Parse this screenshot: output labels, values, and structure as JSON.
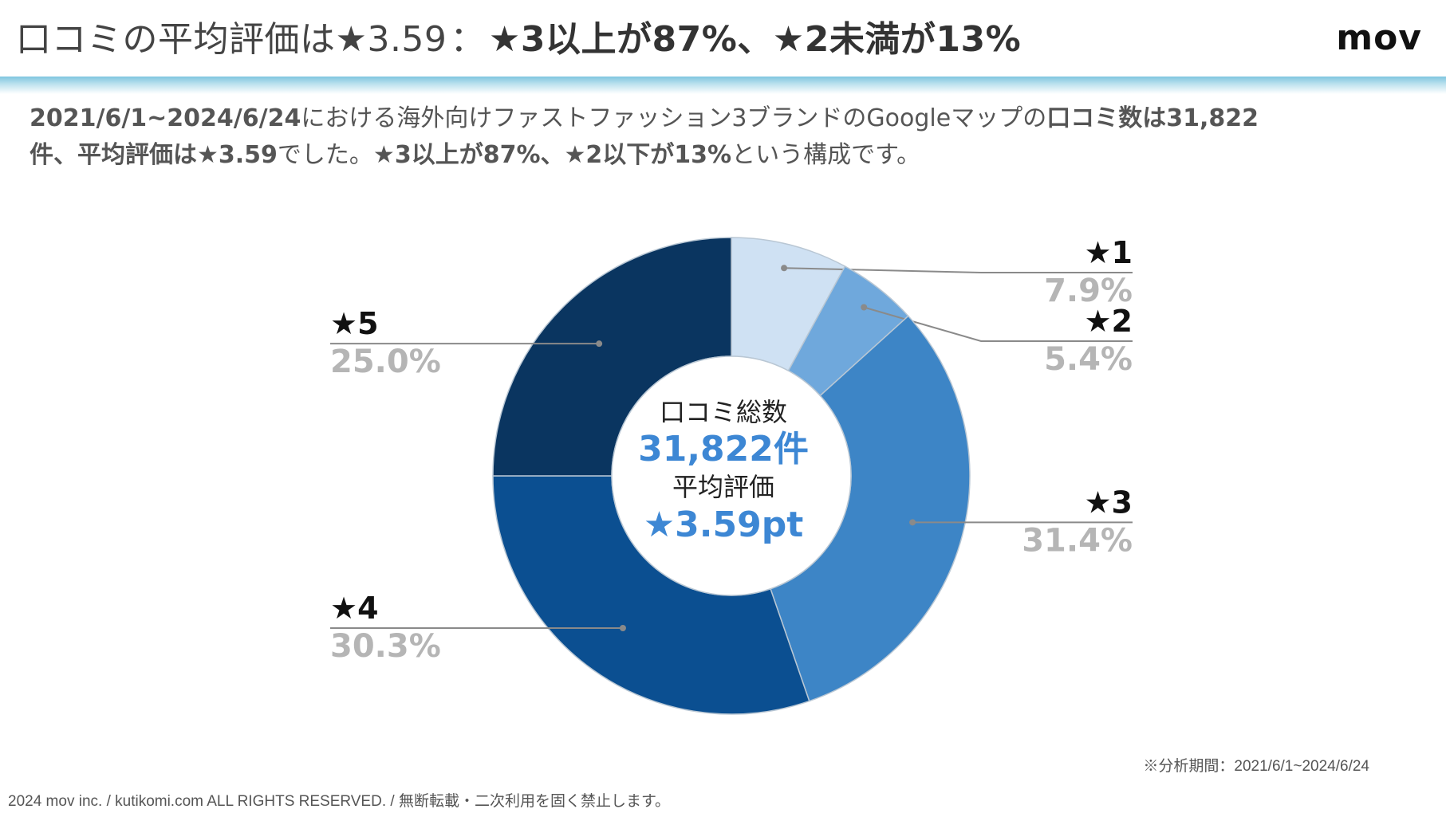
{
  "header": {
    "title_light": "口コミの平均評価は★3.59",
    "title_sep": "：",
    "title_bold": "★3以上が87%、★2未満が13%",
    "logo": "mov"
  },
  "lead": {
    "line1_bold_a": "2021/6/1~2024/6/24",
    "line1_normal": "における海外向けファストファッション3ブランドのGoogleマップの",
    "line1_bold_b": "口コミ数は31,822",
    "line2_bold_a": "件、平均評価は★3.59",
    "line2_normal_a": "でした。",
    "line2_bold_b": "★3以上が87%、★2以下が13%",
    "line2_normal_b": "という構成です。"
  },
  "center": {
    "label1": "口コミ総数",
    "value1": "31,822件",
    "label2": "平均評価",
    "value2": "★3.59pt"
  },
  "note": "※分析期間：2021/6/1~2024/6/24",
  "footer": "2024 mov inc. / kutikomi.com ALL RIGHTS RESERVED. / 無断転載・二次利用を固く禁止します。",
  "colors": {
    "star1": "#cfe1f3",
    "star2": "#6fa8dc",
    "star3": "#3d85c6",
    "star4": "#0b4f91",
    "star5": "#0a3560",
    "accent": "#3d87d4"
  },
  "chart_data": {
    "type": "pie",
    "style": "donut",
    "start": "12 o'clock, clockwise",
    "slices": [
      {
        "name": "★1",
        "value": 7.9,
        "label": "7.9%"
      },
      {
        "name": "★2",
        "value": 5.4,
        "label": "5.4%"
      },
      {
        "name": "★3",
        "value": 31.4,
        "label": "31.4%"
      },
      {
        "name": "★4",
        "value": 30.3,
        "label": "30.3%"
      },
      {
        "name": "★5",
        "value": 25.0,
        "label": "25.0%"
      }
    ]
  }
}
